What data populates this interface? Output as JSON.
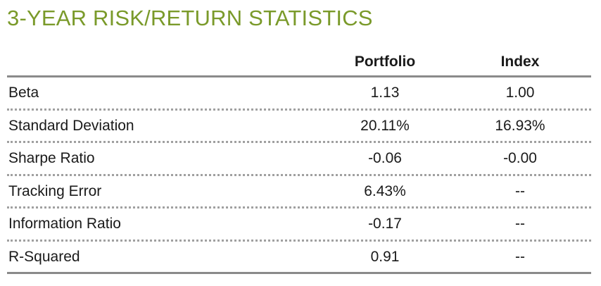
{
  "title": "3-YEAR RISK/RETURN STATISTICS",
  "columns": {
    "portfolio": "Portfolio",
    "index": "Index"
  },
  "rows": [
    {
      "label": "Beta",
      "portfolio": "1.13",
      "index": "1.00"
    },
    {
      "label": "Standard Deviation",
      "portfolio": "20.11%",
      "index": "16.93%"
    },
    {
      "label": "Sharpe Ratio",
      "portfolio": "-0.06",
      "index": "-0.00"
    },
    {
      "label": "Tracking Error",
      "portfolio": "6.43%",
      "index": "--"
    },
    {
      "label": "Information Ratio",
      "portfolio": "-0.17",
      "index": "--"
    },
    {
      "label": "R-Squared",
      "portfolio": "0.91",
      "index": "--"
    }
  ]
}
